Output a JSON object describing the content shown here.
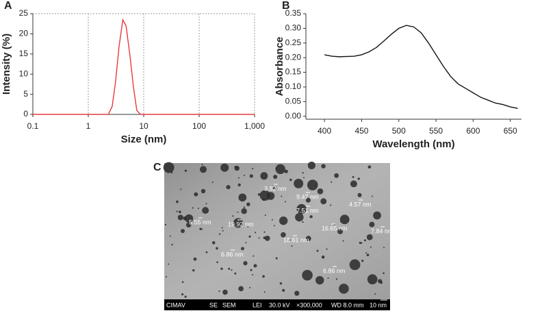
{
  "chart_data": [
    {
      "type": "line",
      "panel": "A",
      "xlabel": "Size (nm)",
      "ylabel": "Intensity (%)",
      "xscale": "log",
      "xlim": [
        0.1,
        1000
      ],
      "xticks": [
        0.1,
        1,
        10,
        100,
        {
          "value": 1000,
          "label": "1,000"
        }
      ],
      "ylim": [
        0,
        25
      ],
      "yticks": [
        0,
        5,
        10,
        15,
        20,
        25
      ],
      "grid": true,
      "color": "#e8383d",
      "x": [
        0.1,
        1,
        2.3,
        2.7,
        3.1,
        3.6,
        4.2,
        4.8,
        5.6,
        6.5,
        7.5,
        8.7,
        100,
        1000
      ],
      "values": [
        0,
        0,
        0,
        2,
        8,
        17,
        23.5,
        22,
        15,
        7,
        1,
        0,
        0,
        0
      ]
    },
    {
      "type": "line",
      "panel": "B",
      "xlabel": "Wavelength (nm)",
      "ylabel": "Absorbance",
      "grid": false,
      "color": "#111111",
      "xlim": [
        375,
        665
      ],
      "xticks": [
        400,
        450,
        500,
        550,
        600,
        650
      ],
      "ylim": [
        -0.01,
        0.35
      ],
      "yticks": [
        {
          "value": 0,
          "label": "0.00"
        },
        0.05,
        {
          "value": 0.1,
          "label": "0.10"
        },
        0.15,
        {
          "value": 0.2,
          "label": "0.20"
        },
        0.25,
        {
          "value": 0.3,
          "label": "0.30"
        },
        0.35
      ],
      "x": [
        400,
        410,
        420,
        430,
        440,
        450,
        460,
        470,
        480,
        490,
        500,
        510,
        520,
        530,
        540,
        550,
        560,
        570,
        580,
        590,
        600,
        610,
        620,
        630,
        640,
        650,
        660
      ],
      "values": [
        0.21,
        0.205,
        0.203,
        0.204,
        0.205,
        0.21,
        0.22,
        0.235,
        0.257,
        0.28,
        0.3,
        0.31,
        0.305,
        0.285,
        0.25,
        0.21,
        0.17,
        0.135,
        0.11,
        0.095,
        0.08,
        0.065,
        0.055,
        0.045,
        0.04,
        0.032,
        0.027
      ]
    }
  ],
  "micrograph": {
    "panel": "C",
    "annotations": [
      "3.92 nm",
      "9.47 nm",
      "7.51 nm",
      "4.57 nm",
      "5.55 nm",
      "19.92 nm",
      "16.65 nm",
      "7.84 nm",
      "18.61 nm",
      "6.86 nm",
      "6.86 nm"
    ],
    "footer": [
      "CIMAV",
      "SE",
      "SEM",
      "LEI",
      "30.0 kV",
      "×300,000",
      "WD 8.0 mm",
      "10 nm"
    ]
  }
}
